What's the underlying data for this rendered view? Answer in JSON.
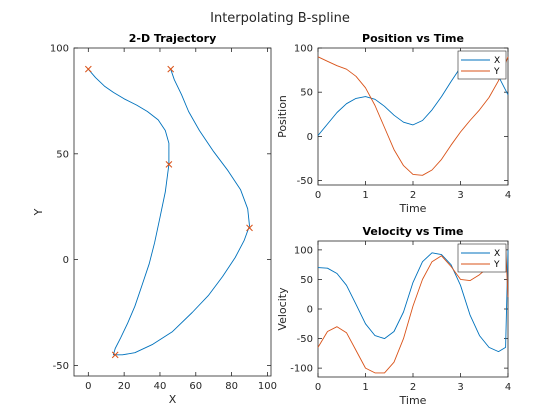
{
  "figure_title": "Interpolating B-spline",
  "colors": {
    "x_series": "#0072BD",
    "y_series": "#D95319",
    "axes": "#262626"
  },
  "chart_data": [
    {
      "type": "line",
      "title": "2-D Trajectory",
      "xlabel": "X",
      "ylabel": "Y",
      "xlim": [
        -8,
        102
      ],
      "ylim": [
        -55,
        100
      ],
      "xticks": [
        0,
        20,
        40,
        60,
        80,
        100
      ],
      "yticks": [
        -50,
        0,
        50,
        100
      ],
      "grid": false,
      "series": [
        {
          "points": [
            [
              0,
              90
            ],
            [
              4,
              86
            ],
            [
              9,
              82
            ],
            [
              14,
              79
            ],
            [
              20,
              76
            ],
            [
              27,
              73
            ],
            [
              33,
              70
            ],
            [
              39,
              66
            ],
            [
              43,
              61
            ],
            [
              45,
              55
            ],
            [
              45,
              45
            ],
            [
              43,
              32
            ],
            [
              40,
              20
            ],
            [
              37,
              8
            ],
            [
              34,
              -2
            ],
            [
              30,
              -12
            ],
            [
              26,
              -22
            ],
            [
              22,
              -30
            ],
            [
              18,
              -37
            ],
            [
              15,
              -42
            ],
            [
              14,
              -45
            ],
            [
              19,
              -45
            ],
            [
              26,
              -44
            ],
            [
              36,
              -40
            ],
            [
              47,
              -34
            ],
            [
              58,
              -25
            ],
            [
              67,
              -17
            ],
            [
              75,
              -8
            ],
            [
              82,
              1
            ],
            [
              87,
              9
            ],
            [
              90,
              16
            ],
            [
              89,
              24
            ],
            [
              85,
              33
            ],
            [
              78,
              42
            ],
            [
              70,
              51
            ],
            [
              62,
              61
            ],
            [
              56,
              70
            ],
            [
              52,
              78
            ],
            [
              48,
              85
            ],
            [
              46,
              90
            ]
          ]
        }
      ],
      "control_points": [
        [
          0,
          90
        ],
        [
          46,
          90
        ],
        [
          45,
          45
        ],
        [
          90,
          15
        ],
        [
          15,
          -45
        ]
      ]
    },
    {
      "type": "line",
      "title": "Position vs Time",
      "xlabel": "Time",
      "ylabel": "Position",
      "xlim": [
        0,
        4
      ],
      "ylim": [
        -55,
        100
      ],
      "xticks": [
        0,
        1,
        2,
        3,
        4
      ],
      "yticks": [
        -50,
        0,
        50,
        100
      ],
      "legend": "top-right",
      "series": [
        {
          "name": "X",
          "x": [
            0,
            0.2,
            0.4,
            0.6,
            0.8,
            1.0,
            1.2,
            1.4,
            1.6,
            1.8,
            2.0,
            2.2,
            2.4,
            2.6,
            2.8,
            3.0,
            3.2,
            3.4,
            3.6,
            3.8,
            4.0
          ],
          "y": [
            1,
            14,
            27,
            37,
            43,
            45,
            42,
            34,
            24,
            16,
            13,
            18,
            30,
            45,
            62,
            78,
            90,
            95,
            89,
            68,
            47
          ]
        },
        {
          "name": "Y",
          "x": [
            0,
            0.2,
            0.4,
            0.6,
            0.8,
            1.0,
            1.2,
            1.4,
            1.6,
            1.8,
            2.0,
            2.2,
            2.4,
            2.6,
            2.8,
            3.0,
            3.2,
            3.4,
            3.6,
            3.8,
            4.0
          ],
          "y": [
            90,
            85,
            80,
            76,
            68,
            55,
            35,
            10,
            -15,
            -33,
            -43,
            -44,
            -38,
            -26,
            -10,
            5,
            18,
            30,
            44,
            63,
            90
          ]
        }
      ]
    },
    {
      "type": "line",
      "title": "Velocity vs Time",
      "xlabel": "Time",
      "ylabel": "Velocity",
      "xlim": [
        0,
        4
      ],
      "ylim": [
        -115,
        115
      ],
      "xticks": [
        0,
        1,
        2,
        3,
        4
      ],
      "yticks": [
        -100,
        -50,
        0,
        50,
        100
      ],
      "legend": "top-right",
      "series": [
        {
          "name": "X",
          "x": [
            0,
            0.2,
            0.4,
            0.6,
            0.8,
            1.0,
            1.2,
            1.4,
            1.6,
            1.8,
            2.0,
            2.2,
            2.4,
            2.6,
            2.8,
            3.0,
            3.2,
            3.4,
            3.6,
            3.8,
            3.95,
            4.0
          ],
          "y": [
            70,
            69,
            60,
            40,
            8,
            -25,
            -45,
            -50,
            -38,
            -5,
            45,
            80,
            95,
            92,
            75,
            40,
            -10,
            -45,
            -65,
            -72,
            -65,
            100
          ]
        },
        {
          "name": "Y",
          "x": [
            0,
            0.2,
            0.4,
            0.6,
            0.8,
            1.0,
            1.2,
            1.4,
            1.6,
            1.8,
            2.0,
            2.2,
            2.4,
            2.6,
            2.8,
            3.0,
            3.2,
            3.4,
            3.6,
            3.8,
            3.95,
            4.0
          ],
          "y": [
            -65,
            -38,
            -30,
            -40,
            -70,
            -100,
            -108,
            -108,
            -90,
            -50,
            5,
            50,
            80,
            90,
            72,
            50,
            48,
            58,
            72,
            95,
            105,
            20
          ]
        }
      ]
    }
  ]
}
